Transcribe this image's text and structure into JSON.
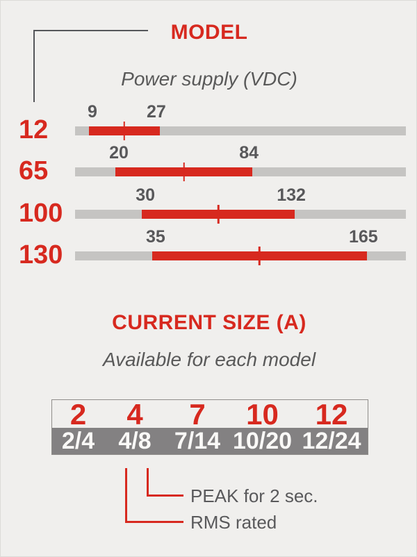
{
  "colors": {
    "background": "#f0efed",
    "accent_red": "#d7291f",
    "track_gray": "#c5c4c2",
    "text_gray": "#58585a",
    "table_row_gray": "#838182",
    "table_border_gray": "#8f8d8a",
    "pointer_line_gray": "#55565a",
    "white_text": "#faf9f7"
  },
  "model_section": {
    "title": "MODEL",
    "subtitle": "Power supply (VDC)",
    "rows": [
      {
        "model": "12",
        "min_label": "9",
        "max_label": "27",
        "min": 9,
        "max": 27,
        "left_pct": 4.2,
        "width_pct": 21.4
      },
      {
        "model": "65",
        "min_label": "20",
        "max_label": "84",
        "min": 20,
        "max": 84,
        "left_pct": 12.2,
        "width_pct": 41.4
      },
      {
        "model": "100",
        "min_label": "30",
        "max_label": "132",
        "min": 30,
        "max": 132,
        "left_pct": 20.2,
        "width_pct": 46.2
      },
      {
        "model": "130",
        "min_label": "35",
        "max_label": "165",
        "min": 35,
        "max": 165,
        "left_pct": 23.3,
        "width_pct": 64.9
      }
    ]
  },
  "current_section": {
    "title": "CURRENT SIZE (A)",
    "subtitle": "Available for each model",
    "rms_row": [
      "2",
      "4",
      "7",
      "10",
      "12"
    ],
    "peak_row": [
      "2/4",
      "4/8",
      "7/14",
      "10/20",
      "12/24"
    ],
    "peak_note": "PEAK for 2 sec.",
    "rms_note": "RMS rated"
  },
  "chart_data": [
    {
      "type": "bar",
      "subtype": "horizontal-range-bars",
      "title": "MODEL",
      "subtitle": "Power supply (VDC)",
      "categories": [
        "12",
        "65",
        "100",
        "130"
      ],
      "series": [
        {
          "name": "Power supply range (VDC)",
          "ranges": [
            [
              9,
              27
            ],
            [
              20,
              84
            ],
            [
              30,
              132
            ],
            [
              35,
              165
            ]
          ]
        }
      ],
      "annotations": "Each gray track shows full scale; red segment marks the supported VDC range with a tick at mid-range; range endpoints labeled above the bar",
      "legend_position": "none",
      "grid": false
    },
    {
      "type": "table",
      "title": "CURRENT SIZE (A)",
      "subtitle": "Available for each model",
      "rows": [
        [
          "2",
          "4",
          "7",
          "10",
          "12"
        ],
        [
          "2/4",
          "4/8",
          "7/14",
          "10/20",
          "12/24"
        ]
      ],
      "annotations": [
        {
          "text": "RMS rated",
          "target": "first number of bottom-row pair"
        },
        {
          "text": "PEAK for 2 sec.",
          "target": "second number of bottom-row pair"
        }
      ]
    }
  ]
}
